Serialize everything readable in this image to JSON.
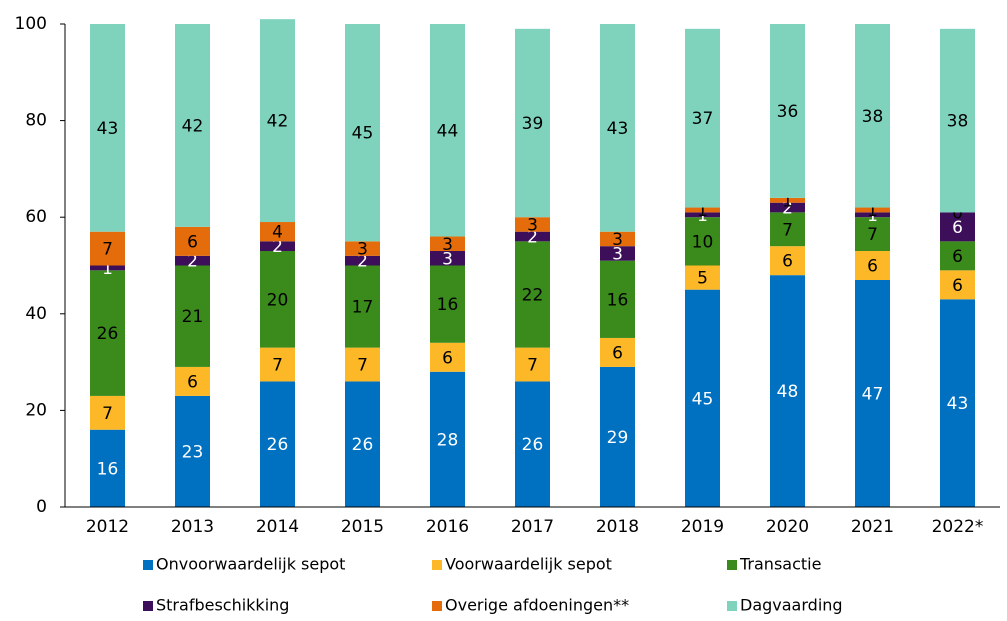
{
  "chart_data": {
    "type": "stacked_bar",
    "categories": [
      "2012",
      "2013",
      "2014",
      "2015",
      "2016",
      "2017",
      "2018",
      "2019",
      "2020",
      "2021",
      "2022*"
    ],
    "series": [
      {
        "name": "Onvoorwaardelijk sepot",
        "color": "#0070c0",
        "values": [
          16,
          23,
          26,
          26,
          28,
          26,
          29,
          45,
          48,
          47,
          43
        ]
      },
      {
        "name": "Voorwaardelijk sepot",
        "color": "#fdb827",
        "values": [
          7,
          6,
          7,
          7,
          6,
          7,
          6,
          5,
          6,
          6,
          6
        ]
      },
      {
        "name": "Transactie",
        "color": "#3a8a1c",
        "values": [
          26,
          21,
          20,
          17,
          16,
          22,
          16,
          10,
          7,
          7,
          6
        ]
      },
      {
        "name": "Strafbeschikking",
        "color": "#3d0f5a",
        "values": [
          1,
          2,
          2,
          2,
          3,
          2,
          3,
          1,
          2,
          1,
          6
        ]
      },
      {
        "name": "Overige afdoeningen**",
        "color": "#e46c0a",
        "values": [
          7,
          6,
          4,
          3,
          3,
          3,
          3,
          1,
          1,
          1,
          0
        ]
      },
      {
        "name": "Dagvaarding",
        "color": "#7fd3bd",
        "values": [
          43,
          42,
          42,
          45,
          44,
          39,
          43,
          37,
          36,
          38,
          38
        ]
      }
    ],
    "ylim": [
      0,
      100
    ],
    "yticks": [
      0,
      20,
      40,
      60,
      80,
      100
    ],
    "grid": false
  }
}
